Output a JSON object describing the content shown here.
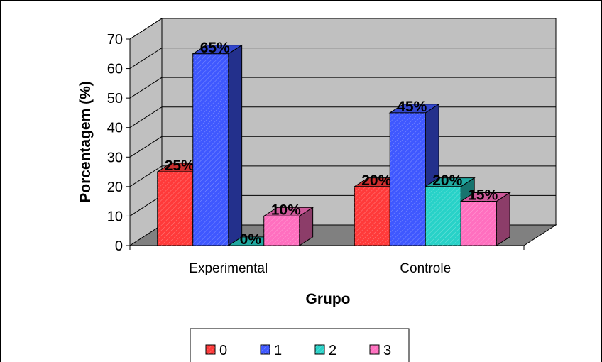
{
  "chart_data": {
    "type": "bar",
    "style": "3d-clustered-column",
    "categories": [
      "Experimental",
      "Controle"
    ],
    "series": [
      {
        "name": "0",
        "values": [
          25,
          20
        ],
        "color": "#ff3a3a"
      },
      {
        "name": "1",
        "values": [
          65,
          45
        ],
        "color": "#3f58ff"
      },
      {
        "name": "2",
        "values": [
          0,
          20
        ],
        "color": "#28d2c8"
      },
      {
        "name": "3",
        "values": [
          10,
          15
        ],
        "color": "#ff6fbf"
      }
    ],
    "data_labels": [
      [
        "25%",
        "20%"
      ],
      [
        "65%",
        "45%"
      ],
      [
        "0%",
        "20%"
      ],
      [
        "10%",
        "15%"
      ]
    ],
    "xlabel": "Grupo",
    "ylabel": "Porcentagem (%)",
    "ylim": [
      0,
      70
    ],
    "yticks": [
      "0",
      "10",
      "20",
      "30",
      "40",
      "50",
      "60",
      "70"
    ],
    "grid": true,
    "wall_color": "#c0c0c0",
    "floor_color": "#808080",
    "legend_position": "bottom"
  }
}
